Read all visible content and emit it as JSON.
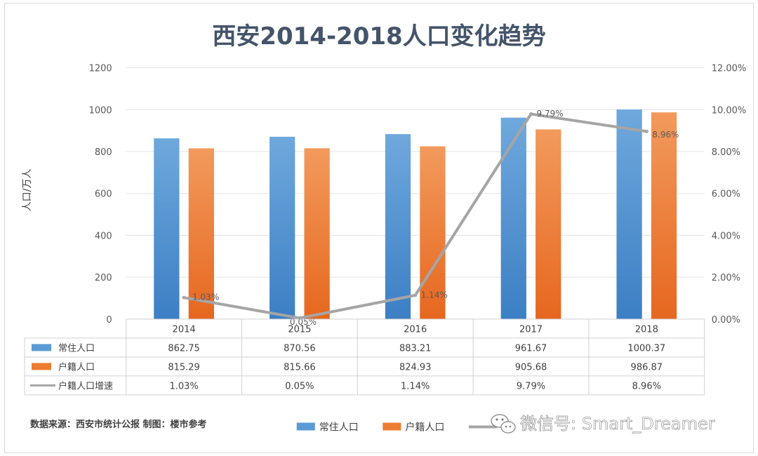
{
  "chart_data": {
    "type": "bar",
    "title": "西安2014-2018人口变化趋势",
    "ylabel": "人口/万人",
    "ylim": [
      0,
      1200
    ],
    "yticks": [
      "0",
      "200",
      "400",
      "600",
      "800",
      "1000",
      "1200"
    ],
    "y2lim": [
      0,
      12
    ],
    "y2ticks": [
      "0.00%",
      "2.00%",
      "4.00%",
      "6.00%",
      "8.00%",
      "10.00%",
      "12.00%"
    ],
    "categories": [
      "2014",
      "2015",
      "2016",
      "2017",
      "2018"
    ],
    "series": [
      {
        "name": "常住人口",
        "type": "bar",
        "color": "#5b9bd5",
        "axis": "left",
        "values": [
          862.75,
          870.56,
          883.21,
          961.67,
          1000.37
        ],
        "display": [
          "862.75",
          "870.56",
          "883.21",
          "961.67",
          "1000.37"
        ]
      },
      {
        "name": "户籍人口",
        "type": "bar",
        "color": "#ed7d31",
        "axis": "left",
        "values": [
          815.29,
          815.66,
          824.93,
          905.68,
          986.87
        ],
        "display": [
          "815.29",
          "815.66",
          "824.93",
          "905.68",
          "986.87"
        ]
      },
      {
        "name": "户籍人口增速",
        "type": "line",
        "color": "#a5a5a5",
        "axis": "right",
        "values": [
          1.03,
          0.05,
          1.14,
          9.79,
          8.96
        ],
        "display": [
          "1.03%",
          "0.05%",
          "1.14%",
          "9.79%",
          "8.96%"
        ]
      }
    ],
    "data_table": true,
    "grid": true,
    "legend": "bottom"
  },
  "footer": {
    "source": "数据来源：西安市统计公报 制图：楼市参考",
    "legend_items": [
      "常住人口",
      "户籍人口"
    ],
    "watermark": "微信号: Smart_Dreamer"
  }
}
